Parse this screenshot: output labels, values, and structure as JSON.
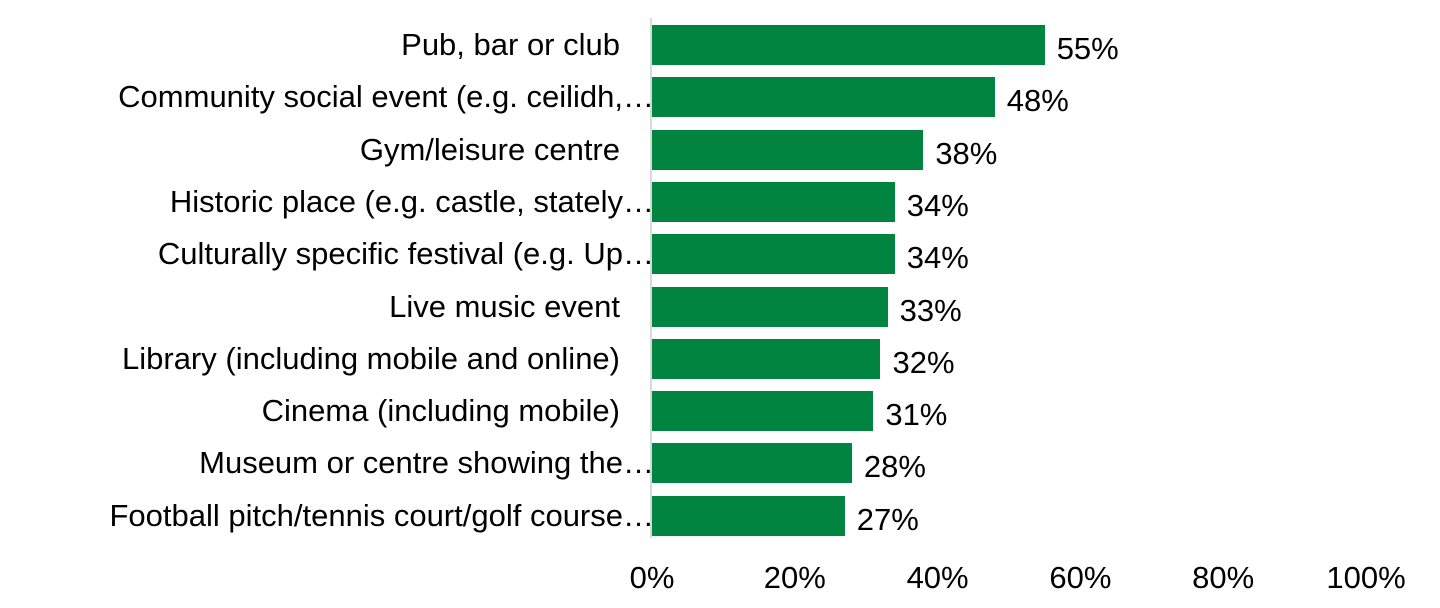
{
  "chart_data": {
    "type": "bar",
    "orientation": "horizontal",
    "title": "",
    "xlabel": "",
    "ylabel": "",
    "xlim": [
      0,
      100
    ],
    "grid": false,
    "legend": null,
    "bar_color": "#00843F",
    "categories": [
      "Pub, bar or club",
      "Community social event (e.g. ceilidh,…",
      "Gym/leisure centre",
      "Historic place (e.g. castle, stately…",
      "Culturally specific festival (e.g. Up…",
      "Live music event",
      "Library (including mobile and online)",
      "Cinema (including mobile)",
      "Museum or centre showing the…",
      "Football pitch/tennis court/golf course…"
    ],
    "values": [
      55,
      48,
      38,
      34,
      34,
      33,
      32,
      31,
      28,
      27
    ],
    "value_labels": [
      "55%",
      "48%",
      "38%",
      "34%",
      "34%",
      "33%",
      "32%",
      "31%",
      "28%",
      "27%"
    ],
    "x_ticks": [
      "0%",
      "20%",
      "40%",
      "60%",
      "80%",
      "100%"
    ]
  }
}
